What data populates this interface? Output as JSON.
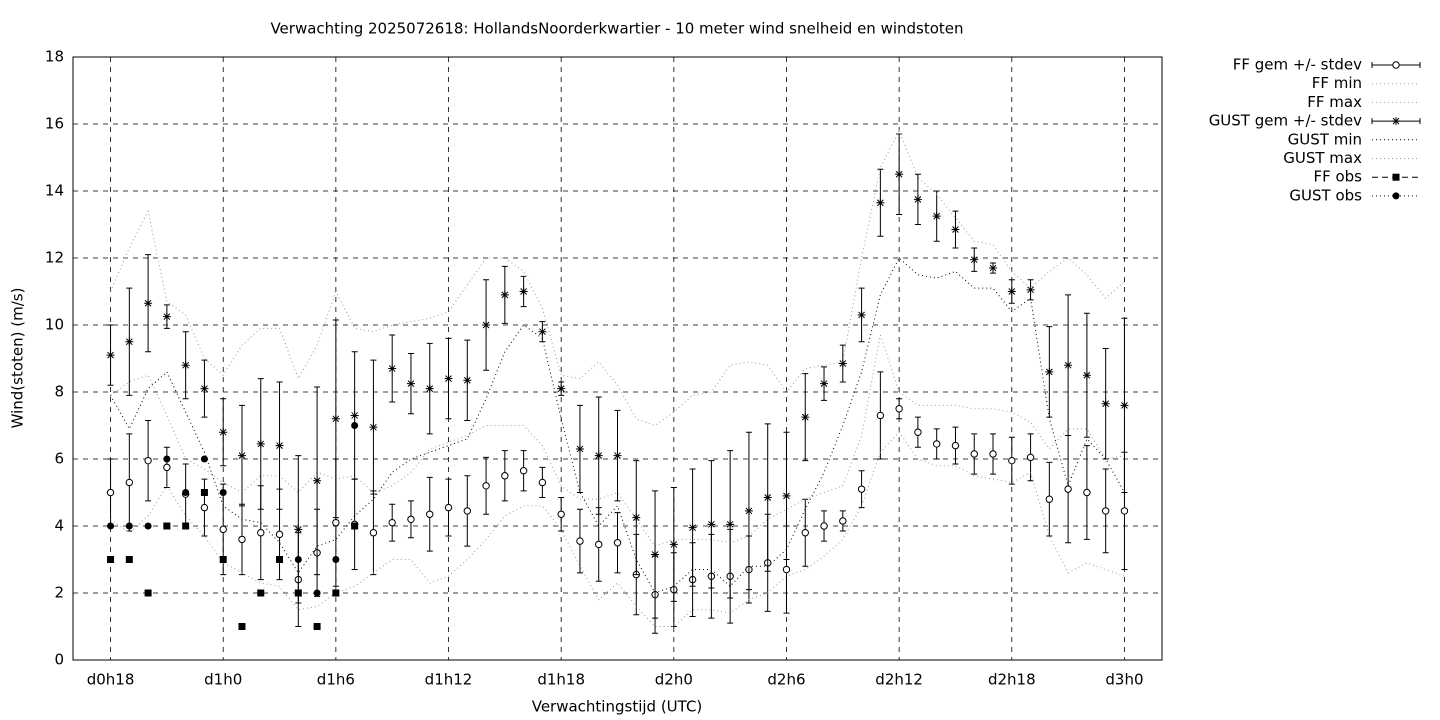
{
  "chart_data": {
    "type": "errorbar",
    "title": "Verwachting 2025072618: HollandsNoorderkwartier - 10 meter wind snelheid en windstoten",
    "x_label": "Verwachtingstijd (UTC)",
    "y_label": "Wind(stoten) (m/s)",
    "xlim": [
      16,
      74
    ],
    "ylim": [
      0,
      18
    ],
    "xticks": [
      {
        "value": 18,
        "label": "d0h18"
      },
      {
        "value": 24,
        "label": "d1h0"
      },
      {
        "value": 30,
        "label": "d1h6"
      },
      {
        "value": 36,
        "label": "d1h12"
      },
      {
        "value": 42,
        "label": "d1h18"
      },
      {
        "value": 48,
        "label": "d2h0"
      },
      {
        "value": 54,
        "label": "d2h6"
      },
      {
        "value": 60,
        "label": "d2h12"
      },
      {
        "value": 66,
        "label": "d2h18"
      },
      {
        "value": 72,
        "label": "d3h0"
      }
    ],
    "yticks": [
      0,
      2,
      4,
      6,
      8,
      10,
      12,
      14,
      16,
      18
    ],
    "grid": true,
    "legend": "outside-top-right",
    "x": [
      18,
      19,
      20,
      21,
      22,
      23,
      24,
      25,
      26,
      27,
      28,
      29,
      30,
      31,
      32,
      33,
      34,
      35,
      36,
      37,
      38,
      39,
      40,
      41,
      42,
      43,
      44,
      45,
      46,
      47,
      48,
      49,
      50,
      51,
      52,
      53,
      54,
      55,
      56,
      57,
      58,
      59,
      60,
      61,
      62,
      63,
      64,
      65,
      66,
      67,
      68,
      69,
      70,
      71,
      72
    ],
    "series": [
      {
        "name": "FF gem +/- stdev",
        "color": "#000000",
        "marker": "circle",
        "line": "solid",
        "values": [
          5.0,
          5.3,
          5.95,
          5.75,
          4.95,
          4.55,
          3.9,
          3.6,
          3.8,
          3.75,
          2.4,
          3.2,
          4.1,
          4.05,
          3.8,
          4.1,
          4.2,
          4.35,
          4.55,
          4.45,
          5.2,
          5.5,
          5.65,
          5.3,
          4.35,
          3.55,
          3.45,
          3.5,
          2.55,
          1.95,
          2.1,
          2.4,
          2.5,
          2.5,
          2.7,
          2.9,
          2.7,
          3.8,
          4.0,
          4.15,
          5.1,
          7.3,
          7.5,
          6.8,
          6.45,
          6.4,
          6.15,
          6.15,
          5.95,
          6.05,
          4.8,
          5.1,
          5.0,
          4.45,
          4.45
        ],
        "errors": [
          1.0,
          1.45,
          1.2,
          0.6,
          0.9,
          0.85,
          1.35,
          1.05,
          1.4,
          1.35,
          1.4,
          1.3,
          1.9,
          1.35,
          1.25,
          0.55,
          0.55,
          1.1,
          0.85,
          1.05,
          0.85,
          0.75,
          0.6,
          0.45,
          0.5,
          0.95,
          1.1,
          0.9,
          1.2,
          1.15,
          1.1,
          1.1,
          1.25,
          1.4,
          1.0,
          1.45,
          1.3,
          1.0,
          0.45,
          0.3,
          0.55,
          1.3,
          0.3,
          0.45,
          0.45,
          0.55,
          0.6,
          0.6,
          0.7,
          0.7,
          1.1,
          1.6,
          1.4,
          1.25,
          1.75
        ]
      },
      {
        "name": "FF min",
        "color": "#999999",
        "marker": null,
        "line": "dotted",
        "values": [
          4.2,
          3.8,
          4.3,
          5.2,
          4.3,
          3.7,
          2.9,
          2.6,
          2.3,
          2.2,
          1.5,
          1.6,
          2.0,
          2.2,
          2.6,
          3.0,
          3.0,
          2.3,
          2.5,
          3.0,
          3.6,
          4.3,
          4.6,
          4.6,
          3.9,
          2.8,
          1.8,
          2.3,
          1.6,
          1.0,
          1.0,
          1.5,
          1.5,
          1.4,
          1.8,
          2.0,
          2.5,
          2.7,
          3.1,
          3.6,
          4.6,
          6.2,
          6.8,
          6.0,
          5.8,
          5.8,
          5.5,
          5.4,
          5.3,
          5.6,
          3.7,
          2.6,
          2.9,
          2.7,
          2.5
        ]
      },
      {
        "name": "FF max",
        "color": "#999999",
        "marker": null,
        "line": "dotted",
        "values": [
          7.9,
          8.3,
          8.5,
          7.3,
          6.0,
          5.7,
          5.3,
          5.0,
          5.5,
          5.5,
          5.0,
          5.6,
          5.4,
          5.5,
          5.0,
          5.2,
          5.6,
          6.3,
          6.5,
          6.7,
          7.0,
          7.0,
          7.0,
          6.4,
          5.2,
          4.8,
          4.8,
          5.0,
          4.2,
          3.4,
          3.6,
          3.6,
          3.6,
          3.5,
          3.7,
          4.2,
          4.5,
          4.8,
          5.0,
          5.2,
          6.7,
          9.7,
          8.0,
          7.6,
          7.6,
          7.6,
          7.5,
          7.5,
          7.4,
          7.1,
          6.3,
          6.9,
          6.9,
          6.0,
          6.1
        ]
      },
      {
        "name": "GUST gem +/- stdev",
        "color": "#000000",
        "marker": "star",
        "line": "solid",
        "values": [
          9.1,
          9.5,
          10.65,
          10.25,
          8.8,
          8.1,
          6.8,
          6.1,
          6.45,
          6.4,
          3.9,
          5.35,
          7.2,
          7.3,
          6.95,
          8.7,
          8.25,
          8.1,
          8.4,
          8.35,
          10.0,
          10.9,
          11.0,
          9.8,
          8.1,
          6.3,
          6.1,
          6.1,
          4.25,
          3.15,
          3.45,
          3.95,
          4.05,
          4.05,
          4.45,
          4.85,
          4.9,
          7.25,
          8.25,
          8.85,
          10.3,
          13.65,
          14.5,
          13.75,
          13.25,
          12.85,
          11.95,
          11.7,
          11.0,
          11.05,
          8.6,
          8.8,
          8.5,
          7.65,
          7.6
        ],
        "errors": [
          0.9,
          1.6,
          1.45,
          0.35,
          1.0,
          0.85,
          1.0,
          1.5,
          1.95,
          1.9,
          2.2,
          2.8,
          2.95,
          1.9,
          2.0,
          1.0,
          0.9,
          1.35,
          1.2,
          1.2,
          1.35,
          0.85,
          0.45,
          0.3,
          0.2,
          1.3,
          1.75,
          1.35,
          1.7,
          1.9,
          1.7,
          1.75,
          1.9,
          2.2,
          2.35,
          2.2,
          1.9,
          1.3,
          0.5,
          0.55,
          0.8,
          1.0,
          1.2,
          0.75,
          0.75,
          0.55,
          0.35,
          0.15,
          0.35,
          0.3,
          1.35,
          2.1,
          1.85,
          1.65,
          2.6
        ]
      },
      {
        "name": "GUST min",
        "color": "#000000",
        "marker": null,
        "line": "dotted",
        "values": [
          7.9,
          6.9,
          8.1,
          8.6,
          7.4,
          6.2,
          4.6,
          4.2,
          4.1,
          3.5,
          2.6,
          3.4,
          3.6,
          4.3,
          4.8,
          5.6,
          6.0,
          6.2,
          6.4,
          6.6,
          7.8,
          9.2,
          10.0,
          9.6,
          7.2,
          5.0,
          4.0,
          4.6,
          3.0,
          2.0,
          2.2,
          2.7,
          2.7,
          2.2,
          2.8,
          2.8,
          3.3,
          4.5,
          5.6,
          7.0,
          8.6,
          10.9,
          12.0,
          11.5,
          11.4,
          11.6,
          11.1,
          11.1,
          10.4,
          10.8,
          7.2,
          5.2,
          6.6,
          6.0,
          5.0
        ]
      },
      {
        "name": "GUST max",
        "color": "#999999",
        "marker": null,
        "line": "dotted",
        "values": [
          11.0,
          12.3,
          13.4,
          10.7,
          10.3,
          9.0,
          8.5,
          9.4,
          9.9,
          9.9,
          8.4,
          9.4,
          11.0,
          9.9,
          9.8,
          10.0,
          10.1,
          10.2,
          10.4,
          11.2,
          12.0,
          12.0,
          11.6,
          10.5,
          8.5,
          8.4,
          8.9,
          8.2,
          7.2,
          7.0,
          7.4,
          7.9,
          8.0,
          8.8,
          8.9,
          8.8,
          8.0,
          8.7,
          8.8,
          8.9,
          12.0,
          14.7,
          15.8,
          14.4,
          13.9,
          13.2,
          12.5,
          12.4,
          11.6,
          11.1,
          11.6,
          12.0,
          11.5,
          10.8,
          11.3
        ]
      },
      {
        "name": "FF obs",
        "color": "#000000",
        "marker": "square",
        "line": "dashed",
        "values": [
          3,
          3,
          2,
          4,
          4,
          5,
          3,
          1,
          2,
          3,
          2,
          1,
          2,
          4,
          null,
          null,
          null,
          null,
          null,
          null,
          null,
          null,
          null,
          null,
          null,
          null,
          null,
          null,
          null,
          null,
          null,
          null,
          null,
          null,
          null,
          null,
          null,
          null,
          null,
          null,
          null,
          null,
          null,
          null,
          null,
          null,
          null,
          null,
          null,
          null,
          null,
          null,
          null,
          null,
          null
        ]
      },
      {
        "name": "GUST obs",
        "color": "#000000",
        "marker": "dot",
        "line": "dotted",
        "values": [
          4,
          4,
          4,
          6,
          5,
          6,
          5,
          null,
          null,
          3,
          3,
          2,
          3,
          7,
          null,
          null,
          null,
          null,
          null,
          null,
          null,
          null,
          null,
          null,
          null,
          null,
          null,
          null,
          null,
          null,
          null,
          null,
          null,
          null,
          null,
          null,
          null,
          null,
          null,
          null,
          null,
          null,
          null,
          null,
          null,
          null,
          null,
          null,
          null,
          null,
          null,
          null,
          null,
          null,
          null
        ]
      }
    ]
  }
}
